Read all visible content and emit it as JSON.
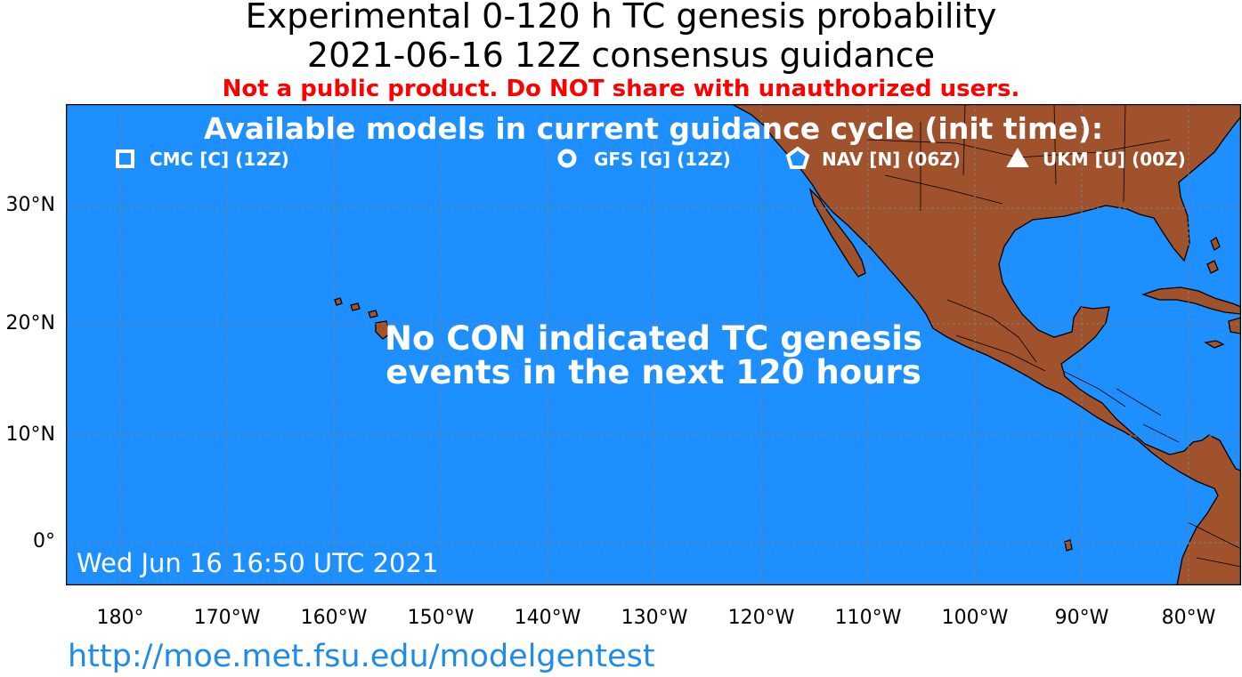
{
  "header": {
    "title_line1": "Experimental 0-120 h TC genesis probability",
    "title_line2": "2021-06-16 12Z consensus guidance",
    "warning": "Not a public product. Do NOT share with unauthorized users."
  },
  "map": {
    "ocean_color": "#1e8fff",
    "land_color": "#a0522d",
    "models_heading": "Available models in current guidance cycle (init time):",
    "models": [
      {
        "icon": "square-marker-icon",
        "label": "CMC [C] (12Z)"
      },
      {
        "icon": "circle-marker-icon",
        "label": "GFS [G] (12Z)"
      },
      {
        "icon": "pentagon-marker-icon",
        "label": "NAV [N] (06Z)"
      },
      {
        "icon": "triangle-marker-icon",
        "label": "UKM [U] (00Z)"
      }
    ],
    "message_line1": "No CON indicated TC genesis",
    "message_line2": "events in the next 120 hours",
    "timestamp": "Wed Jun 16 16:50 UTC 2021",
    "lat_labels": [
      "30°N",
      "20°N",
      "10°N",
      "0°"
    ],
    "lon_labels": [
      "180°",
      "170°W",
      "160°W",
      "150°W",
      "140°W",
      "130°W",
      "120°W",
      "110°W",
      "100°W",
      "90°W",
      "80°W"
    ]
  },
  "footer": {
    "url": "http://moe.met.fsu.edu/modelgentest"
  }
}
